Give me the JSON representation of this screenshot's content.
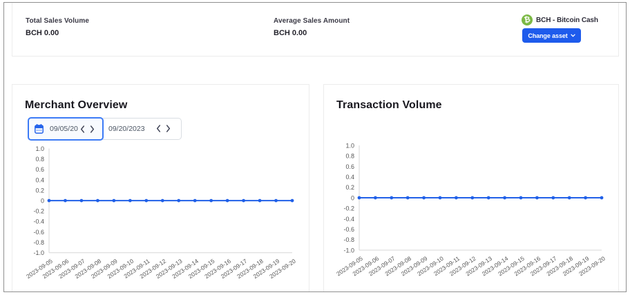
{
  "header": {
    "stats": [
      {
        "label": "Total Sales Volume",
        "value": "BCH 0.00"
      },
      {
        "label": "Average Sales Amount",
        "value": "BCH 0.00"
      }
    ],
    "asset": {
      "icon": "bitcoin-cash-icon",
      "icon_symbol": "₿",
      "icon_color": "#7cb946",
      "name": "BCH - Bitcoin Cash"
    },
    "change_asset_label": "Change asset"
  },
  "panels": {
    "left": {
      "title": "Merchant Overview"
    },
    "right": {
      "title": "Transaction Volume"
    }
  },
  "date_picker": {
    "start_value": "09/05/20",
    "end_value": "09/20/2023"
  },
  "colors": {
    "line": "#2060e8",
    "button": "#1e5bec",
    "axis": "#d7d7d7",
    "tick_label": "#555555",
    "focus_border": "#3c7bf6"
  },
  "chart_data": [
    {
      "type": "line",
      "title": "Merchant Overview",
      "x": [
        "2023-09-05",
        "2023-09-06",
        "2023-09-07",
        "2023-09-08",
        "2023-09-09",
        "2023-09-10",
        "2023-09-11",
        "2023-09-12",
        "2023-09-13",
        "2023-09-14",
        "2023-09-15",
        "2023-09-16",
        "2023-09-17",
        "2023-09-18",
        "2023-09-19",
        "2023-09-20"
      ],
      "values": [
        0,
        0,
        0,
        0,
        0,
        0,
        0,
        0,
        0,
        0,
        0,
        0,
        0,
        0,
        0,
        0
      ],
      "ylim": [
        -1.0,
        1.0
      ],
      "ytick_step": 0.2,
      "grid": false,
      "legend": false,
      "line_color": "#2060e8"
    },
    {
      "type": "line",
      "title": "Transaction Volume",
      "x": [
        "2023-09-05",
        "2023-09-06",
        "2023-09-07",
        "2023-09-08",
        "2023-09-09",
        "2023-09-10",
        "2023-09-11",
        "2023-09-12",
        "2023-09-13",
        "2023-09-14",
        "2023-09-15",
        "2023-09-16",
        "2023-09-17",
        "2023-09-18",
        "2023-09-19",
        "2023-09-20"
      ],
      "values": [
        0,
        0,
        0,
        0,
        0,
        0,
        0,
        0,
        0,
        0,
        0,
        0,
        0,
        0,
        0,
        0
      ],
      "ylim": [
        -1.0,
        1.0
      ],
      "ytick_step": 0.2,
      "grid": false,
      "legend": false,
      "line_color": "#2060e8"
    }
  ]
}
